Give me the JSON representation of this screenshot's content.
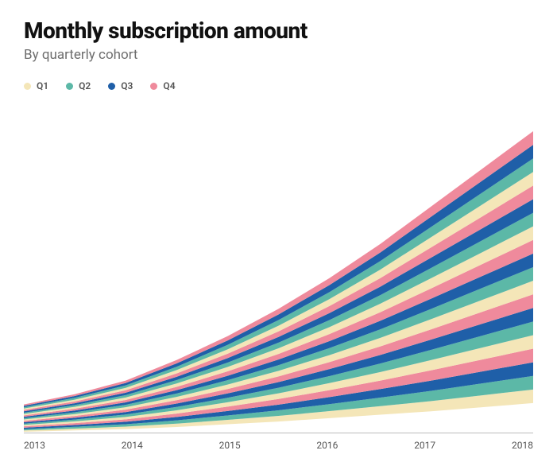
{
  "chart": {
    "type": "stacked-area",
    "title": "Monthly subscription amount",
    "subtitle": "By quarterly cohort",
    "title_fontsize": 28,
    "title_fontweight": 800,
    "subtitle_fontsize": 17,
    "subtitle_color": "#6d6d6d",
    "background_color": "#ffffff",
    "axis_line_color": "#bcbcbc",
    "tick_font_color": "#555555",
    "tick_fontsize": 12,
    "legend_items": [
      {
        "label": "Q1",
        "color": "#f4e6b8"
      },
      {
        "label": "Q2",
        "color": "#5cb8a7"
      },
      {
        "label": "Q3",
        "color": "#1f5fa8"
      },
      {
        "label": "Q4",
        "color": "#ef8a9c"
      }
    ],
    "x_labels": [
      "2013",
      "2014",
      "2015",
      "2016",
      "2017",
      "2018"
    ],
    "xlim": [
      2013,
      2018
    ],
    "ylim": [
      0,
      440
    ],
    "n_cohorts": 20,
    "cohort_color_cycle": [
      "#f4e6b8",
      "#5cb8a7",
      "#1f5fa8",
      "#ef8a9c"
    ],
    "x_points": [
      2013.0,
      2013.5,
      2014.0,
      2014.5,
      2015.0,
      2015.5,
      2016.0,
      2016.5,
      2017.0,
      2017.5,
      2018.0
    ],
    "totals": [
      40,
      55,
      75,
      105,
      140,
      180,
      225,
      275,
      330,
      385,
      440
    ],
    "bottom_shape": [
      0,
      2,
      4,
      7,
      11,
      15,
      20,
      25,
      30,
      36,
      42
    ]
  }
}
